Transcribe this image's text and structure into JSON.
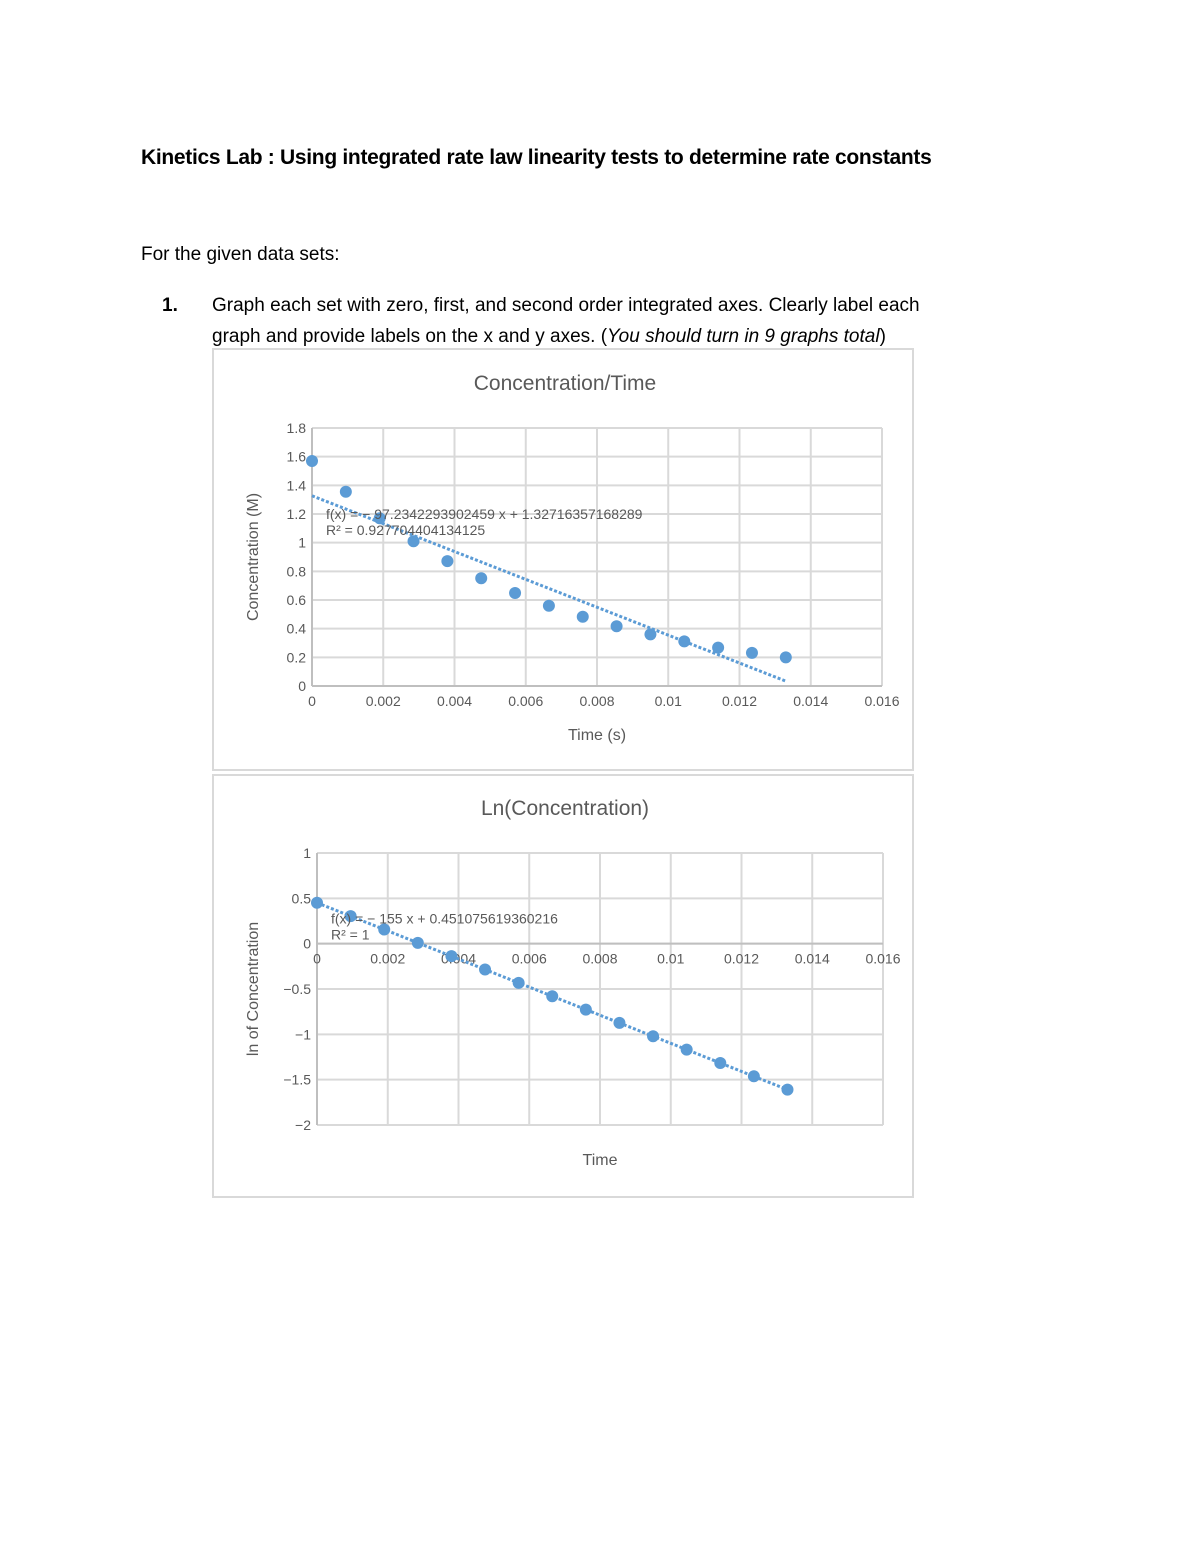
{
  "document": {
    "title": "Kinetics Lab : Using integrated rate law linearity tests to determine rate constants",
    "intro": "For the given data sets:",
    "list": [
      {
        "number": "1.",
        "text_before": "Graph each set with zero, first, and second order integrated axes. Clearly label each",
        "text_line2": "graph and provide labels on the x and y axes. (",
        "text_italic": "You should turn in 9 graphs total",
        "text_after": ")"
      }
    ]
  },
  "colors": {
    "series": "#5b9bd5",
    "grid": "#d9d9d9",
    "axis_text": "#595959",
    "frame": "#d9d9d9"
  },
  "chart_data": [
    {
      "type": "scatter",
      "title": "Concentration/Time",
      "xlabel": "Time (s)",
      "ylabel": "Concentration (M)",
      "xlim": [
        0,
        0.016
      ],
      "ylim": [
        0,
        1.8
      ],
      "xticks": [
        "0",
        "0.002",
        "0.004",
        "0.006",
        "0.008",
        "0.01",
        "0.012",
        "0.014",
        "0.016"
      ],
      "yticks": [
        "0",
        "0.2",
        "0.4",
        "0.6",
        "0.8",
        "1",
        "1.2",
        "1.4",
        "1.6",
        "1.8"
      ],
      "grid": true,
      "legend": "none",
      "series": [
        {
          "name": "Concentration",
          "x": [
            0,
            0.00095,
            0.0019,
            0.00285,
            0.0038,
            0.00475,
            0.0057,
            0.00665,
            0.0076,
            0.00855,
            0.0095,
            0.01045,
            0.0114,
            0.01235,
            0.0133
          ],
          "y": [
            1.57,
            1.355,
            1.17,
            1.01,
            0.871,
            0.752,
            0.649,
            0.56,
            0.483,
            0.417,
            0.36,
            0.311,
            0.268,
            0.231,
            0.2
          ]
        }
      ],
      "trendline": {
        "type": "linear",
        "slope": -97.2342293902459,
        "intercept": 1.32716357168289,
        "x_range": [
          0,
          0.0133
        ],
        "equation": "f(x) = − 97.2342293902459 x + 1.32716357168289",
        "r_squared": "R² = 0.927704404134125"
      }
    },
    {
      "type": "scatter",
      "title": "Ln(Concentration)",
      "xlabel": "Time",
      "ylabel": "ln of Concentration",
      "xlim": [
        0,
        0.016
      ],
      "ylim": [
        -2,
        1
      ],
      "xticks": [
        "0",
        "0.002",
        "0.004",
        "0.006",
        "0.008",
        "0.01",
        "0.012",
        "0.014",
        "0.016"
      ],
      "yticks": [
        "-2",
        "-1.5",
        "-1",
        "-0.5",
        "0",
        "0.5",
        "1"
      ],
      "grid": true,
      "legend": "none",
      "series": [
        {
          "name": "ln(Concentration)",
          "x": [
            0,
            0.00095,
            0.0019,
            0.00285,
            0.0038,
            0.00475,
            0.0057,
            0.00665,
            0.0076,
            0.00855,
            0.0095,
            0.01045,
            0.0114,
            0.01235,
            0.0133
          ],
          "y": [
            0.451,
            0.304,
            0.156,
            0.009,
            -0.138,
            -0.285,
            -0.432,
            -0.58,
            -0.727,
            -0.874,
            -1.021,
            -1.169,
            -1.316,
            -1.463,
            -1.61
          ]
        }
      ],
      "trendline": {
        "type": "linear",
        "slope": -155,
        "intercept": 0.451075619360216,
        "x_range": [
          0,
          0.0133
        ],
        "equation": "f(x) = − 155 x + 0.451075619360216",
        "r_squared": "R² = 1"
      }
    }
  ]
}
